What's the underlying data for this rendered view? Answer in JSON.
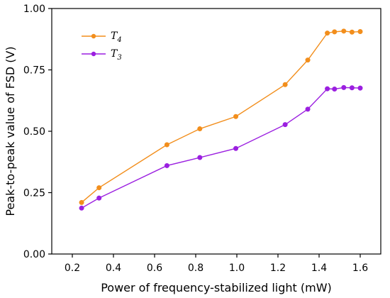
{
  "chart_data": {
    "type": "line",
    "xlabel": "Power of frequency-stabilized light (mW)",
    "ylabel": "Peak-to-peak value of FSD (V)",
    "xlim": [
      0.1,
      1.7
    ],
    "ylim": [
      0.0,
      1.0
    ],
    "xticks": [
      "0.2",
      "0.4",
      "0.6",
      "0.8",
      "1.0",
      "1.2",
      "1.4",
      "1.6"
    ],
    "yticks": [
      "0.00",
      "0.25",
      "0.50",
      "0.75",
      "1.00"
    ],
    "grid": false,
    "legend_position": "top-left",
    "series": [
      {
        "name": "T",
        "subscript": "4",
        "color": "#f28e1c",
        "x": [
          0.245,
          0.33,
          0.66,
          0.82,
          0.995,
          1.235,
          1.345,
          1.44,
          1.475,
          1.52,
          1.56,
          1.6
        ],
        "y": [
          0.21,
          0.27,
          0.445,
          0.51,
          0.56,
          0.69,
          0.79,
          0.9,
          0.905,
          0.908,
          0.904,
          0.906
        ]
      },
      {
        "name": "T",
        "subscript": "3",
        "color": "#9b1fe0",
        "x": [
          0.245,
          0.33,
          0.66,
          0.82,
          0.995,
          1.235,
          1.345,
          1.44,
          1.475,
          1.52,
          1.56,
          1.6
        ],
        "y": [
          0.187,
          0.228,
          0.36,
          0.393,
          0.43,
          0.527,
          0.59,
          0.673,
          0.672,
          0.678,
          0.677,
          0.676
        ]
      }
    ]
  }
}
